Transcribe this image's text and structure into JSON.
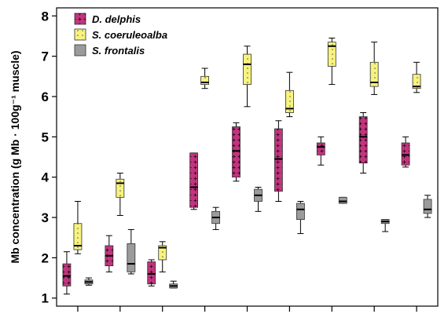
{
  "chart_data": {
    "type": "box",
    "ylabel": "Mb concentration (g Mb · 100g⁻¹ muscle)",
    "ylim": [
      0.8,
      8.2
    ],
    "yticks": [
      1,
      2,
      3,
      4,
      5,
      6,
      7,
      8
    ],
    "group_count": 9,
    "grid": false,
    "legend_position": "top-left",
    "series": [
      {
        "name": "D. delphis",
        "color": "#c0357d",
        "pattern": "plus",
        "boxes": [
          {
            "group": 1,
            "min": 1.1,
            "q1": 1.3,
            "median": 1.55,
            "q3": 1.85,
            "max": 2.15
          },
          {
            "group": 2,
            "min": 1.65,
            "q1": 1.8,
            "median": 2.05,
            "q3": 2.3,
            "max": 2.55
          },
          {
            "group": 3,
            "min": 1.3,
            "q1": 1.35,
            "median": 1.6,
            "q3": 1.9,
            "max": 1.95
          },
          {
            "group": 4,
            "min": 3.2,
            "q1": 3.25,
            "median": 3.75,
            "q3": 4.6,
            "max": 4.6
          },
          {
            "group": 5,
            "min": 3.9,
            "q1": 4.0,
            "median": 4.65,
            "q3": 5.25,
            "max": 5.35
          },
          {
            "group": 6,
            "min": 3.4,
            "q1": 3.65,
            "median": 4.45,
            "q3": 5.2,
            "max": 5.4
          },
          {
            "group": 7,
            "min": 4.3,
            "q1": 4.55,
            "median": 4.75,
            "q3": 4.85,
            "max": 5.0
          },
          {
            "group": 8,
            "min": 4.1,
            "q1": 4.35,
            "median": 5.0,
            "q3": 5.5,
            "max": 5.6
          },
          {
            "group": 9,
            "min": 4.25,
            "q1": 4.3,
            "median": 4.55,
            "q3": 4.85,
            "max": 5.0
          }
        ]
      },
      {
        "name": "S. coeruleoalba",
        "color": "#f7f37e",
        "pattern": "dots",
        "boxes": [
          {
            "group": 1,
            "min": 2.1,
            "q1": 2.2,
            "median": 2.3,
            "q3": 2.85,
            "max": 3.4
          },
          {
            "group": 2,
            "min": 3.05,
            "q1": 3.5,
            "median": 3.85,
            "q3": 3.95,
            "max": 4.1
          },
          {
            "group": 3,
            "min": 1.65,
            "q1": 1.95,
            "median": 2.25,
            "q3": 2.3,
            "max": 2.4
          },
          {
            "group": 4,
            "min": 6.2,
            "q1": 6.3,
            "median": 6.35,
            "q3": 6.5,
            "max": 6.7
          },
          {
            "group": 5,
            "min": 5.75,
            "q1": 6.3,
            "median": 6.8,
            "q3": 7.05,
            "max": 7.25
          },
          {
            "group": 6,
            "min": 5.5,
            "q1": 5.6,
            "median": 5.7,
            "q3": 6.15,
            "max": 6.6
          },
          {
            "group": 7,
            "min": 6.3,
            "q1": 6.75,
            "median": 7.25,
            "q3": 7.35,
            "max": 7.45
          },
          {
            "group": 8,
            "min": 6.05,
            "q1": 6.25,
            "median": 6.35,
            "q3": 6.85,
            "max": 7.35
          },
          {
            "group": 9,
            "min": 6.1,
            "q1": 6.2,
            "median": 6.25,
            "q3": 6.55,
            "max": 6.85
          }
        ]
      },
      {
        "name": "S. frontalis",
        "color": "#9b9b9b",
        "pattern": "none",
        "boxes": [
          {
            "group": 1,
            "min": 1.32,
            "q1": 1.35,
            "median": 1.4,
            "q3": 1.45,
            "max": 1.5
          },
          {
            "group": 2,
            "min": 1.6,
            "q1": 1.65,
            "median": 1.85,
            "q3": 2.35,
            "max": 2.7
          },
          {
            "group": 3,
            "min": 1.25,
            "q1": 1.25,
            "median": 1.3,
            "q3": 1.35,
            "max": 1.42
          },
          {
            "group": 4,
            "min": 2.7,
            "q1": 2.85,
            "median": 3.0,
            "q3": 3.15,
            "max": 3.25
          },
          {
            "group": 5,
            "min": 3.15,
            "q1": 3.4,
            "median": 3.55,
            "q3": 3.7,
            "max": 3.75
          },
          {
            "group": 6,
            "min": 2.6,
            "q1": 2.95,
            "median": 3.2,
            "q3": 3.35,
            "max": 3.4
          },
          {
            "group": 7,
            "min": 3.35,
            "q1": 3.35,
            "median": 3.4,
            "q3": 3.5,
            "max": 3.5
          },
          {
            "group": 8,
            "min": 2.65,
            "q1": 2.85,
            "median": 2.9,
            "q3": 2.95,
            "max": 2.95
          },
          {
            "group": 9,
            "min": 3.0,
            "q1": 3.1,
            "median": 3.2,
            "q3": 3.45,
            "max": 3.55
          }
        ]
      }
    ]
  }
}
